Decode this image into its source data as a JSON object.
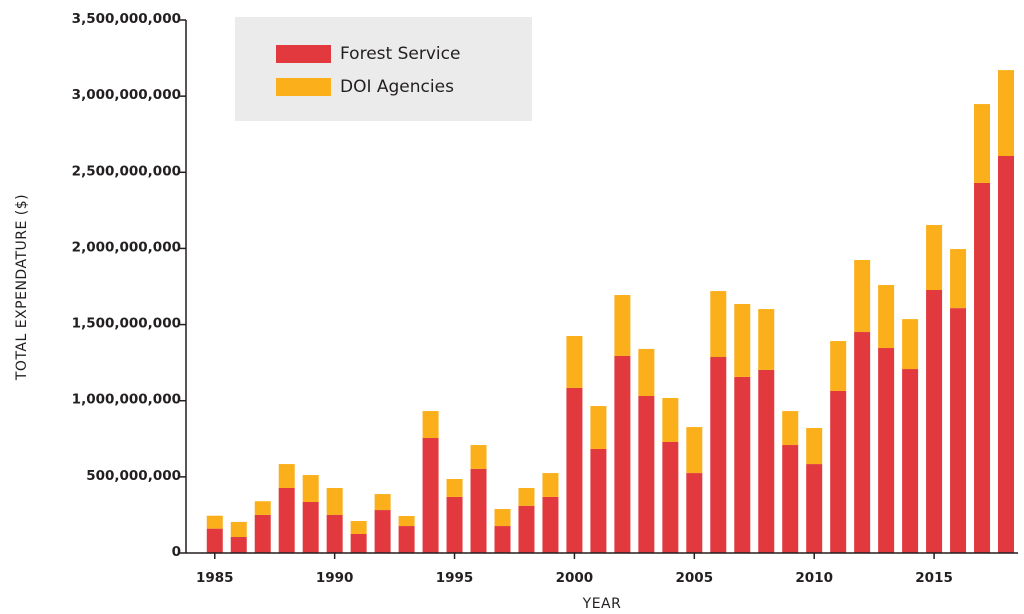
{
  "chart_data": {
    "type": "stacked-bar",
    "x_label": "YEAR",
    "y_label": "TOTAL EXPENDATURE ($)",
    "x": [
      1985,
      1986,
      1987,
      1988,
      1989,
      1990,
      1991,
      1992,
      1993,
      1994,
      1995,
      1996,
      1997,
      1998,
      1999,
      2000,
      2001,
      2002,
      2003,
      2004,
      2005,
      2006,
      2007,
      2008,
      2009,
      2010,
      2011,
      2012,
      2013,
      2014,
      2015,
      2016,
      2017,
      2018
    ],
    "series": [
      {
        "name": "Forest Service",
        "color": "#e2393f",
        "values": [
          160000000,
          105000000,
          250000000,
          427000000,
          335000000,
          250000000,
          125000000,
          282000000,
          177000000,
          755000000,
          368000000,
          552000000,
          177000000,
          309000000,
          368000000,
          1084000000,
          683000000,
          1294000000,
          1031000000,
          729000000,
          525000000,
          1287000000,
          1156000000,
          1202000000,
          709000000,
          584000000,
          1064000000,
          1451000000,
          1346000000,
          1208000000,
          1727000000,
          1608000000,
          2430000000,
          2607000000
        ]
      },
      {
        "name": "DOI Agencies",
        "color": "#fbaf1b",
        "values": [
          85000000,
          99000000,
          90000000,
          157000000,
          177000000,
          177000000,
          85000000,
          105000000,
          66000000,
          177000000,
          118000000,
          157000000,
          112000000,
          118000000,
          157000000,
          341000000,
          282000000,
          400000000,
          309000000,
          289000000,
          302000000,
          433000000,
          479000000,
          400000000,
          223000000,
          237000000,
          328000000,
          473000000,
          414000000,
          328000000,
          427000000,
          388000000,
          518000000,
          564000000
        ]
      }
    ],
    "xlim": [
      1983.8,
      2018.5
    ],
    "xticks": [
      1985,
      1990,
      1995,
      2000,
      2005,
      2010,
      2015
    ],
    "ylim": [
      0,
      3500000000
    ],
    "yticks": [
      0,
      {
        "value": 500000000,
        "label": "500,000,000"
      },
      {
        "value": 1000000000,
        "label": "1,000,000,000"
      },
      {
        "value": 1500000000,
        "label": "1,500,000,000"
      },
      {
        "value": 2000000000,
        "label": "2,000,000,000"
      },
      {
        "value": 2500000000,
        "label": "2,500,000,000"
      },
      {
        "value": 3000000000,
        "label": "3,000,000,000"
      },
      {
        "value": 3500000000,
        "label": "3,500,000,000"
      }
    ],
    "legend": "top-left"
  }
}
